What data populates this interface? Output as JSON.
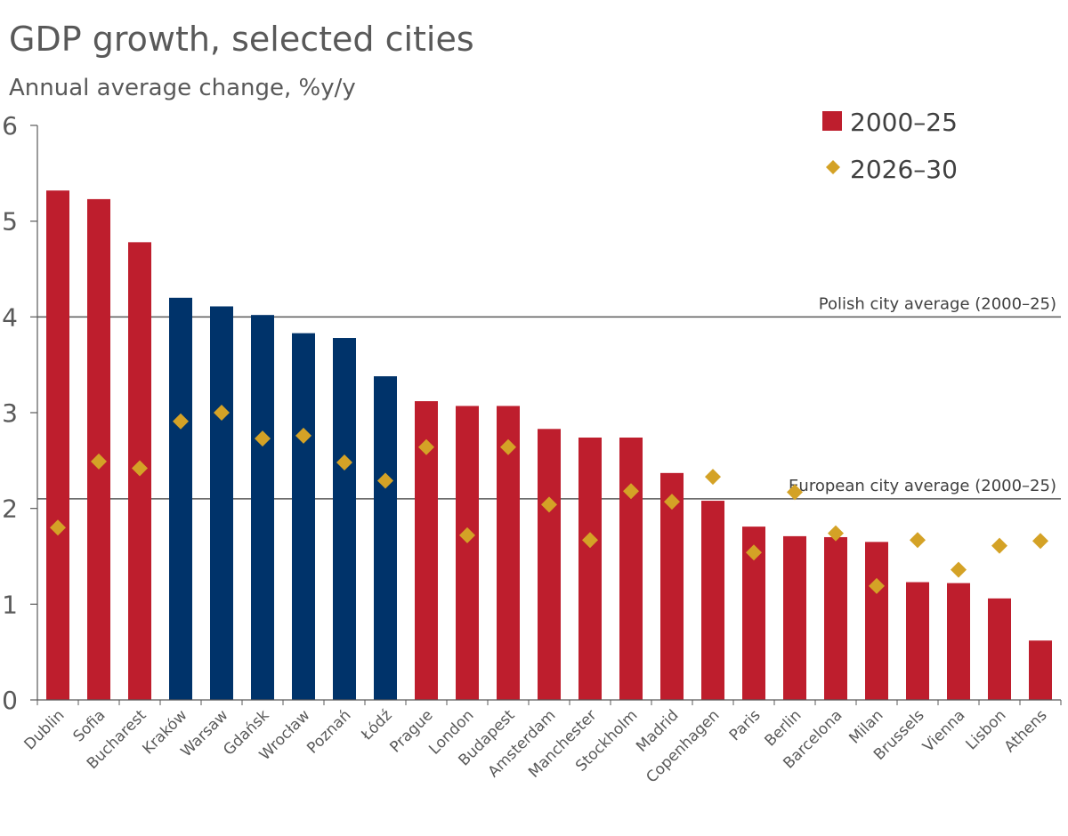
{
  "chart_data": {
    "type": "bar",
    "title": "GDP growth, selected cities",
    "subtitle": "Annual average change, %y/y",
    "xlabel": "",
    "ylabel": "",
    "ylim": [
      0,
      6
    ],
    "yticks": [
      0,
      1,
      2,
      3,
      4,
      5,
      6
    ],
    "categories": [
      "Dublin",
      "Sofia",
      "Bucharest",
      "Kraków",
      "Warsaw",
      "Gdańsk",
      "Wrocław",
      "Poznań",
      "Łódź",
      "Prague",
      "London",
      "Budapest",
      "Amsterdam",
      "Manchester",
      "Stockholm",
      "Madrid",
      "Copenhagen",
      "Paris",
      "Berlin",
      "Barcelona",
      "Milan",
      "Brussels",
      "Vienna",
      "Lisbon",
      "Athens"
    ],
    "polish_cities": [
      "Kraków",
      "Warsaw",
      "Gdańsk",
      "Wrocław",
      "Poznań",
      "Łódź"
    ],
    "series": [
      {
        "name": "2000–25",
        "kind": "bar",
        "values": [
          5.32,
          5.23,
          4.78,
          4.2,
          4.11,
          4.02,
          3.83,
          3.78,
          3.38,
          3.12,
          3.07,
          3.07,
          2.83,
          2.74,
          2.74,
          2.37,
          2.08,
          1.81,
          1.71,
          1.7,
          1.65,
          1.23,
          1.22,
          1.06,
          0.62
        ]
      },
      {
        "name": "2026–30",
        "kind": "scatter",
        "values": [
          1.8,
          2.49,
          2.42,
          2.91,
          3.0,
          2.73,
          2.76,
          2.48,
          2.29,
          2.64,
          1.72,
          2.64,
          2.04,
          1.67,
          2.18,
          2.07,
          2.33,
          1.54,
          2.17,
          1.74,
          1.19,
          1.67,
          1.36,
          1.61,
          1.66
        ]
      }
    ],
    "reference_lines": [
      {
        "label": "Polish city average (2000–25)",
        "value": 4.0
      },
      {
        "label": "European city average (2000–25)",
        "value": 2.1
      }
    ],
    "legend_position": "top-right",
    "colors": {
      "bar_default": "#be1e2d",
      "bar_polish": "#00336a",
      "marker": "#d4a226",
      "axis": "#595959",
      "reference_line": "#595959"
    }
  }
}
